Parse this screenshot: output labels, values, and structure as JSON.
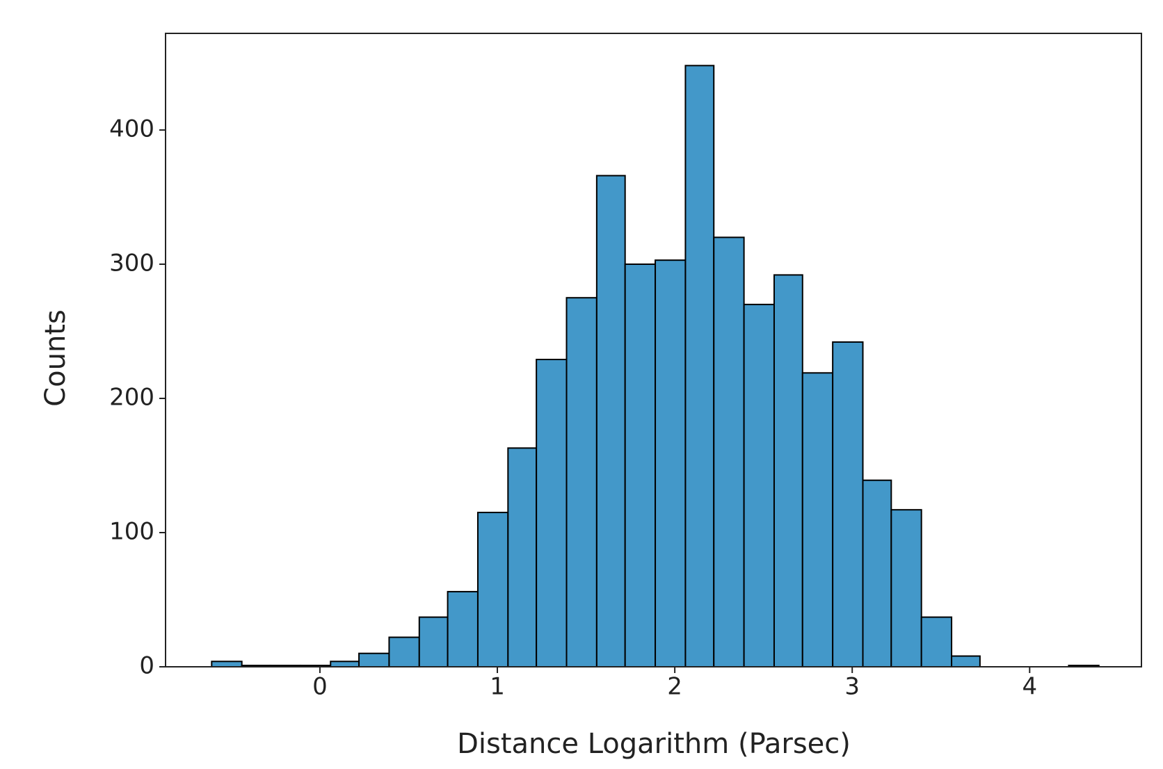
{
  "chart_data": {
    "type": "histogram",
    "xlabel": "Distance Logarithm (Parsec)",
    "ylabel": "Counts",
    "bins": [
      -0.61,
      -0.44,
      -0.28,
      -0.11,
      0.06,
      0.22,
      0.39,
      0.56,
      0.72,
      0.89,
      1.06,
      1.22,
      1.39,
      1.56,
      1.72,
      1.89,
      2.06,
      2.22,
      2.39,
      2.56,
      2.72,
      2.89,
      3.06,
      3.22,
      3.39,
      3.56,
      3.72,
      3.89,
      4.06,
      4.22,
      4.39
    ],
    "values": [
      4,
      1,
      1,
      1,
      4,
      10,
      22,
      37,
      56,
      115,
      163,
      229,
      275,
      366,
      300,
      303,
      448,
      320,
      270,
      292,
      219,
      242,
      139,
      117,
      37,
      8,
      0,
      0,
      0,
      1
    ],
    "color": "#4398c9",
    "edgecolor": "#000000",
    "xlim": [
      -0.87,
      4.63
    ],
    "ylim": [
      0,
      472
    ],
    "xticks": [
      0,
      1,
      2,
      3,
      4
    ],
    "yticks": [
      0,
      100,
      200,
      300,
      400
    ]
  }
}
